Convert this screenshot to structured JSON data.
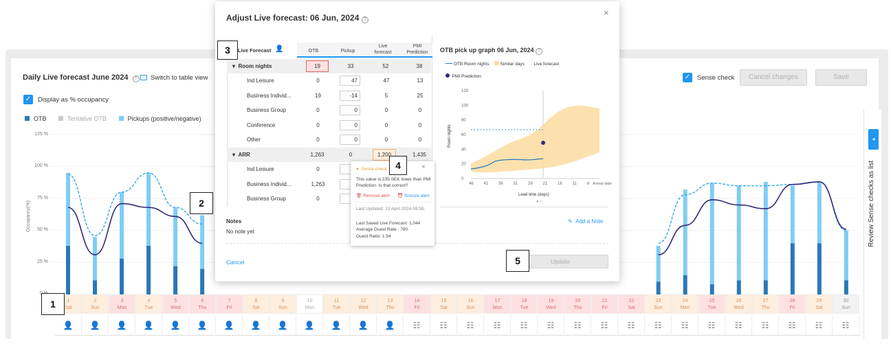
{
  "page": {
    "title": "Daily Live forecast June 2024",
    "switch_view": "Switch to table view",
    "display_occupancy": "Display as % occupancy",
    "sense_check": "Sense check",
    "cancel_changes": "Cancel changes",
    "save": "Save",
    "review_sense_checks": "Review Sense checks as list"
  },
  "legend": {
    "otb": "OTB",
    "tentative": "Tentative OTB",
    "pickups": "Pickups (positive/negative)"
  },
  "yaxis": {
    "label": "Occupancy(%)",
    "ticks": [
      "125 %",
      "100 %",
      "75 %",
      "50 %",
      "25 %",
      "0 %"
    ]
  },
  "days": [
    {
      "num": "1",
      "dow": "Sat",
      "style": "orange"
    },
    {
      "num": "2",
      "dow": "Sun",
      "style": "orange"
    },
    {
      "num": "3",
      "dow": "Mon",
      "style": "red"
    },
    {
      "num": "4",
      "dow": "Tue",
      "style": "orange"
    },
    {
      "num": "5",
      "dow": "Wed",
      "style": "red"
    },
    {
      "num": "6",
      "dow": "Thu",
      "style": "red"
    },
    {
      "num": "7",
      "dow": "Fri",
      "style": "red"
    },
    {
      "num": "8",
      "dow": "Sat",
      "style": "orange"
    },
    {
      "num": "9",
      "dow": "Sun",
      "style": "orange"
    },
    {
      "num": "10",
      "dow": "Mon",
      "style": "white"
    },
    {
      "num": "11",
      "dow": "Tue",
      "style": "orange"
    },
    {
      "num": "12",
      "dow": "Wed",
      "style": "orange"
    },
    {
      "num": "13",
      "dow": "Thu",
      "style": "orange"
    },
    {
      "num": "14",
      "dow": "Fri",
      "style": "red"
    },
    {
      "num": "15",
      "dow": "Sat",
      "style": "orange"
    },
    {
      "num": "16",
      "dow": "Sun",
      "style": "orange"
    },
    {
      "num": "17",
      "dow": "Mon",
      "style": "red"
    },
    {
      "num": "18",
      "dow": "Tue",
      "style": "red"
    },
    {
      "num": "19",
      "dow": "Wed",
      "style": "red"
    },
    {
      "num": "20",
      "dow": "Thu",
      "style": "red"
    },
    {
      "num": "21",
      "dow": "Fri",
      "style": "red"
    },
    {
      "num": "22",
      "dow": "Sat",
      "style": "red"
    },
    {
      "num": "23",
      "dow": "Sun",
      "style": "orange"
    },
    {
      "num": "24",
      "dow": "Mon",
      "style": "orange"
    },
    {
      "num": "25",
      "dow": "Tue",
      "style": "red"
    },
    {
      "num": "26",
      "dow": "Wed",
      "style": "orange"
    },
    {
      "num": "27",
      "dow": "Thu",
      "style": "orange"
    },
    {
      "num": "28",
      "dow": "Fri",
      "style": "red"
    },
    {
      "num": "29",
      "dow": "Sat",
      "style": "orange"
    },
    {
      "num": "30",
      "dow": "Sun",
      "style": "gray"
    }
  ],
  "chart_data": {
    "type": "bar",
    "ylabel": "Occupancy(%)",
    "ylim": [
      0,
      125
    ],
    "categories": [
      "1",
      "2",
      "3",
      "4",
      "5",
      "6",
      "7",
      "8",
      "9",
      "10",
      "11",
      "12",
      "13",
      "14",
      "15",
      "16",
      "17",
      "18",
      "19",
      "20",
      "21",
      "22",
      "23",
      "24",
      "25",
      "26",
      "27",
      "28",
      "29",
      "30"
    ],
    "series": [
      {
        "name": "OTB",
        "values": [
          38,
          11,
          28,
          38,
          22,
          20,
          null,
          null,
          null,
          null,
          null,
          null,
          null,
          null,
          null,
          null,
          null,
          null,
          null,
          null,
          null,
          null,
          10,
          15,
          8,
          11,
          11,
          40,
          40,
          11
        ]
      },
      {
        "name": "Pickups (positive/negative)",
        "values": [
          57,
          34,
          52,
          57,
          46,
          42,
          null,
          null,
          null,
          null,
          null,
          null,
          null,
          null,
          null,
          null,
          null,
          null,
          null,
          null,
          null,
          null,
          28,
          67,
          79,
          74,
          77,
          45,
          48,
          39
        ]
      },
      {
        "name": "Live forecast",
        "values": [
          94,
          46,
          80,
          95,
          68,
          55,
          null,
          null,
          null,
          null,
          null,
          null,
          null,
          null,
          null,
          null,
          null,
          null,
          null,
          null,
          null,
          null,
          40,
          78,
          87,
          85,
          85,
          86,
          88,
          50
        ]
      },
      {
        "name": "PMI Prediction",
        "values": [
          68,
          31,
          71,
          68,
          61,
          40,
          null,
          null,
          null,
          null,
          null,
          null,
          null,
          null,
          null,
          null,
          null,
          null,
          null,
          null,
          null,
          null,
          31,
          54,
          74,
          70,
          67,
          86,
          88,
          51
        ]
      }
    ]
  },
  "modal": {
    "title": "Adjust Live forecast: 06 Jun, 2024",
    "live_forecast_label": "Live Forecast",
    "columns": [
      "OTB",
      "Pickup",
      "Live forecast",
      "PMI Prediction"
    ],
    "room_nights": {
      "label": "Room nights",
      "values": [
        "19",
        "33",
        "52",
        "38"
      ],
      "rows": [
        {
          "label": "Ind Leisure",
          "otb": "0",
          "pickup": "47",
          "live": "47",
          "pmi": "13"
        },
        {
          "label": "Business Individ...",
          "otb": "19",
          "pickup": "-14",
          "live": "5",
          "pmi": "25"
        },
        {
          "label": "Business Group",
          "otb": "0",
          "pickup": "0",
          "live": "0",
          "pmi": "0"
        },
        {
          "label": "Conference",
          "otb": "0",
          "pickup": "0",
          "live": "0",
          "pmi": "0"
        },
        {
          "label": "Other",
          "otb": "0",
          "pickup": "0",
          "live": "0",
          "pmi": "0"
        }
      ]
    },
    "arr": {
      "label": "ARR",
      "values": [
        "1,263",
        "0",
        "1,200",
        "1,435"
      ],
      "rows": [
        {
          "label": "Ind Leisure",
          "otb": "0",
          "pickup": "1,1"
        },
        {
          "label": "Business Individ...",
          "otb": "1,263",
          "pickup": "9"
        },
        {
          "label": "Business Group",
          "otb": "0",
          "pickup": ""
        }
      ]
    },
    "notes_label": "Notes",
    "notes_empty": "No note yet",
    "add_note": "Add a Note",
    "cancel": "Cancel",
    "update": "Update",
    "graph": {
      "title": "OTB pick up graph 06 Jun, 2024",
      "legend_otb": "OTB Room nights",
      "legend_similar": "Similar days",
      "legend_live": "Live forecast",
      "legend_pmi": "PMI Prediction",
      "ylabel": "Room nights",
      "xlabel": "Lead time (days)",
      "arrival": "Arrival date",
      "yticks": [
        "120",
        "100",
        "80",
        "60",
        "40",
        "20",
        "0"
      ],
      "xticks": [
        "46",
        "41",
        "36",
        "31",
        "26",
        "21",
        "16",
        "11",
        "6"
      ]
    }
  },
  "popup": {
    "title": "Sense check",
    "message": "This value is 235 SEK lower than PMI Prediction. Is that correct?",
    "remove": "Remove alert",
    "snooze": "Snooze alert",
    "updated": "Last Updated: 12 April 2024 09:58,",
    "last_saved": "Last Saved Live Forecast: 1,044",
    "avg_rate": "Average Guest Rate : 780",
    "guest_ratio": "Guest Ratio: 1.54"
  },
  "callouts": [
    "1",
    "2",
    "3",
    "4",
    "5"
  ],
  "colors": {
    "accent": "#2196f3",
    "otb": "#2a78b8",
    "pickup": "#7fcdf5",
    "forecast": "#2f2a7a"
  }
}
